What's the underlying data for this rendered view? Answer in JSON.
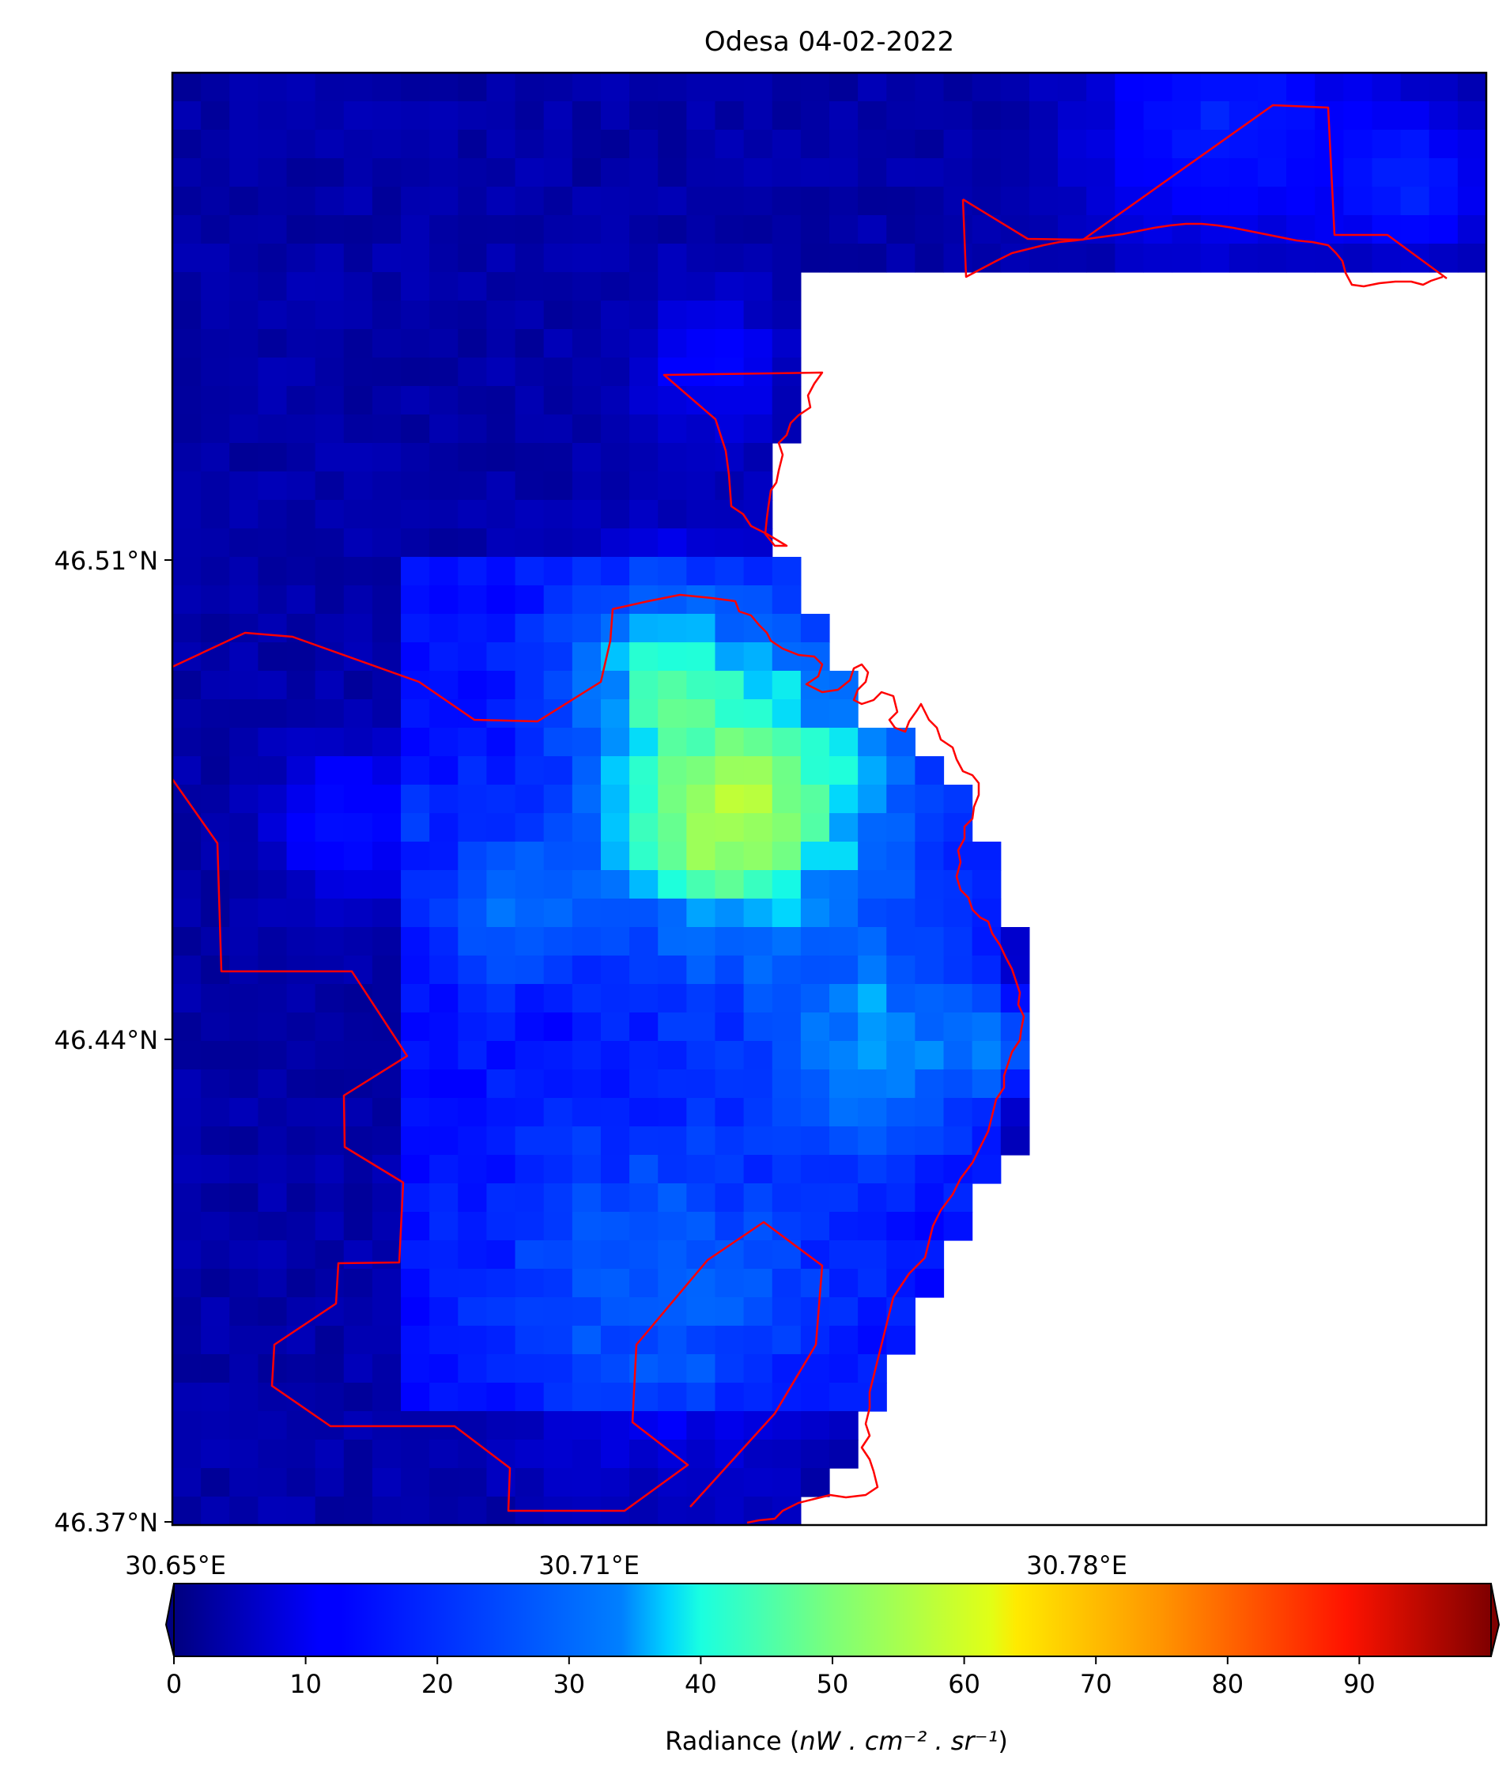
{
  "title": "Odesa 04-02-2022",
  "map": {
    "lat_ticks": [
      "46.51°N",
      "46.44°N",
      "46.37°N"
    ],
    "lon_ticks": [
      "30.65°E",
      "30.71°E",
      "30.78°E"
    ],
    "grid_cols": 46,
    "grid_rows": 51,
    "no_data_color": "#ffffff",
    "boundary_color": "#ff0000"
  },
  "colorbar": {
    "label_prefix": "Radiance (",
    "label_math": "nW . cm⁻² . sr⁻¹",
    "label_suffix": ")",
    "ticks": [
      "0",
      "10",
      "20",
      "30",
      "40",
      "50",
      "60",
      "70",
      "80",
      "90"
    ],
    "vmin": 0,
    "vmax": 100,
    "colormap": "jet",
    "extend": "both"
  },
  "chart_data": {
    "type": "heatmap",
    "title": "Odesa 04-02-2022",
    "xlabel": "",
    "ylabel": "",
    "x_tick_labels": [
      "30.65°E",
      "30.71°E",
      "30.78°E"
    ],
    "y_tick_labels": [
      "46.51°N",
      "46.44°N",
      "46.37°N"
    ],
    "colorbar_label": "Radiance (nW . cm⁻² . sr⁻¹)",
    "value_range": [
      0,
      100
    ],
    "legend": "bottom colorbar",
    "grid": false
  }
}
